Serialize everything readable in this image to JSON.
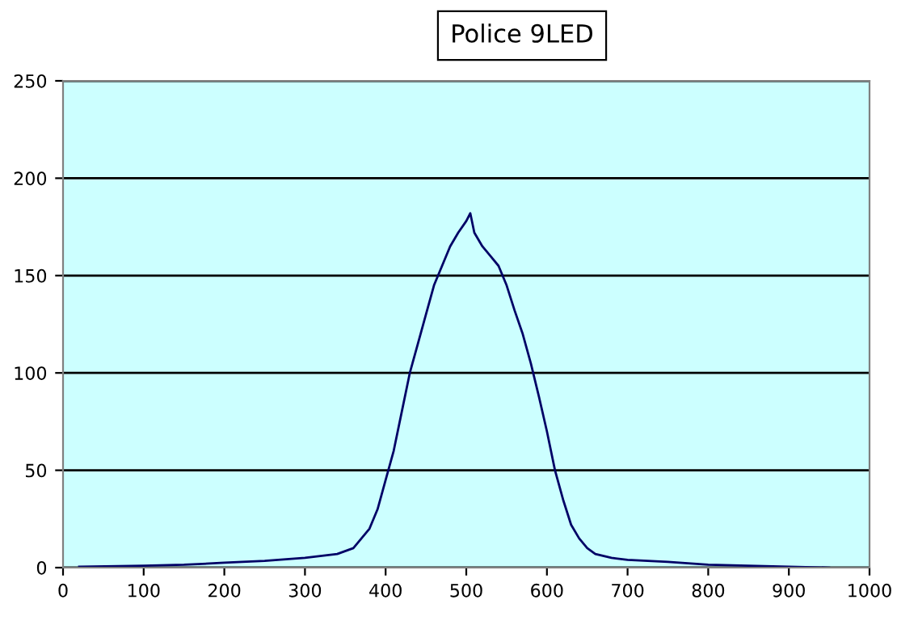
{
  "chart_data": {
    "type": "line",
    "title": "Police 9LED",
    "series": [
      {
        "color": "#000066",
        "x": [
          20,
          100,
          150,
          200,
          250,
          300,
          340,
          360,
          380,
          390,
          400,
          410,
          420,
          430,
          440,
          450,
          460,
          470,
          480,
          490,
          500,
          505,
          510,
          520,
          530,
          540,
          550,
          560,
          570,
          580,
          590,
          600,
          610,
          620,
          630,
          640,
          650,
          660,
          680,
          700,
          750,
          800,
          850,
          900,
          950
        ],
        "values": [
          0.5,
          1,
          1.5,
          2.5,
          3.5,
          5,
          7,
          10,
          20,
          30,
          45,
          60,
          80,
          100,
          115,
          130,
          145,
          155,
          165,
          172,
          178,
          182,
          172,
          165,
          160,
          155,
          145,
          132,
          120,
          105,
          88,
          70,
          50,
          35,
          22,
          15,
          10,
          7,
          5,
          4,
          3,
          1.5,
          1,
          0.5,
          0
        ]
      }
    ],
    "xlim": [
      0,
      1000
    ],
    "xticks": [
      0,
      100,
      200,
      300,
      400,
      500,
      600,
      700,
      800,
      900,
      1000
    ],
    "ylim": [
      0,
      250
    ],
    "yticks": [
      0,
      50,
      100,
      150,
      200,
      250
    ],
    "grid": "y",
    "legend": false,
    "marker": "none",
    "line_style": "solid"
  }
}
